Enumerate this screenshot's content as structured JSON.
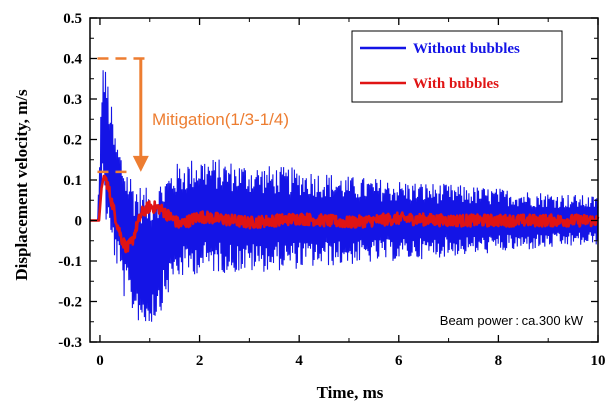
{
  "chart_data": {
    "type": "line",
    "title": "",
    "xlabel": "Time, ms",
    "ylabel": "Displacement velocity, m/s",
    "xlim": [
      -0.2,
      10
    ],
    "ylim": [
      -0.3,
      0.5
    ],
    "x_ticks": [
      0,
      2,
      4,
      6,
      8,
      10
    ],
    "y_ticks": [
      -0.3,
      -0.2,
      -0.1,
      0,
      0.1,
      0.2,
      0.3,
      0.4,
      0.5
    ],
    "grid": false,
    "legend_position": "top-right",
    "series": [
      {
        "name": "Without bubbles",
        "color": "#1414e6",
        "envelope": [
          [
            -0.2,
            0.0,
            0.0
          ],
          [
            -0.05,
            0.0,
            0.0
          ],
          [
            0.0,
            0.0,
            0.2
          ],
          [
            0.05,
            0.1,
            0.4
          ],
          [
            0.15,
            -0.05,
            0.36
          ],
          [
            0.3,
            -0.1,
            0.22
          ],
          [
            0.5,
            -0.2,
            0.15
          ],
          [
            0.7,
            -0.24,
            0.1
          ],
          [
            0.9,
            -0.27,
            0.08
          ],
          [
            1.1,
            -0.25,
            0.09
          ],
          [
            1.2,
            -0.23,
            0.1
          ],
          [
            1.5,
            -0.15,
            0.14
          ],
          [
            2.0,
            -0.13,
            0.16
          ],
          [
            3.0,
            -0.13,
            0.14
          ],
          [
            4.0,
            -0.12,
            0.13
          ],
          [
            5.0,
            -0.11,
            0.11
          ],
          [
            6.0,
            -0.1,
            0.1
          ],
          [
            7.0,
            -0.09,
            0.09
          ],
          [
            8.0,
            -0.08,
            0.08
          ],
          [
            9.0,
            -0.07,
            0.07
          ],
          [
            10.0,
            -0.06,
            0.06
          ]
        ]
      },
      {
        "name": "With bubbles",
        "color": "#e01414",
        "points": [
          [
            -0.2,
            0.0
          ],
          [
            -0.02,
            0.0
          ],
          [
            0.03,
            0.08
          ],
          [
            0.08,
            0.11
          ],
          [
            0.15,
            0.09
          ],
          [
            0.25,
            0.04
          ],
          [
            0.35,
            -0.01
          ],
          [
            0.45,
            -0.05
          ],
          [
            0.55,
            -0.07
          ],
          [
            0.65,
            -0.05
          ],
          [
            0.75,
            -0.01
          ],
          [
            0.85,
            0.02
          ],
          [
            1.0,
            0.035
          ],
          [
            1.2,
            0.03
          ],
          [
            1.4,
            0.01
          ],
          [
            1.6,
            -0.01
          ],
          [
            2.0,
            0.01
          ],
          [
            3.0,
            -0.005
          ],
          [
            4.0,
            0.005
          ],
          [
            5.0,
            -0.005
          ],
          [
            6.0,
            0.005
          ],
          [
            7.0,
            0.0
          ],
          [
            8.0,
            0.0
          ],
          [
            9.0,
            0.0
          ],
          [
            10.0,
            0.0
          ]
        ],
        "noise_amplitude": 0.015
      }
    ],
    "annotations": {
      "mitigation_text": "Mitigation(1/3-1/4)",
      "mitigation_color": "#ed7d31",
      "mitigation_upper_y": 0.4,
      "mitigation_lower_y": 0.12,
      "mitigation_x_range": [
        -0.05,
        0.9
      ],
      "note_text": "Beam power : ca.300 kW"
    }
  }
}
